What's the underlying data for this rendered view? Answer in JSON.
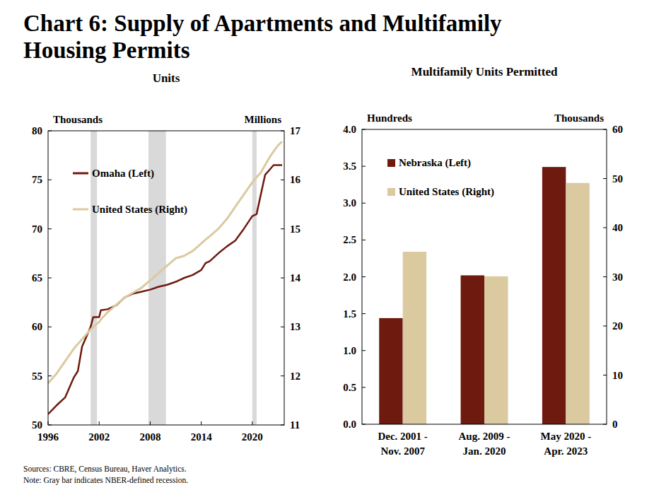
{
  "title": "Chart 6: Supply of Apartments and Multifamily Housing Permits",
  "sources": "Sources: CBRE,  Census Bureau, Haver Analytics.",
  "note": "Note: Gray bar indicates NBER-defined  recession.",
  "chart_data": [
    {
      "type": "line",
      "title": "Units",
      "ylabel": "Thousands",
      "y2label": "Millions",
      "x": [
        1996,
        1997,
        1998,
        1999,
        1999.5,
        2000,
        2000.5,
        2001,
        2001.3,
        2002,
        2002.2,
        2003,
        2004,
        2005,
        2006,
        2007,
        2008,
        2009,
        2010,
        2011,
        2012,
        2013,
        2014,
        2014.5,
        2015,
        2016,
        2017,
        2018,
        2019,
        2020,
        2020.5,
        2021,
        2021.5,
        2022,
        2022.5,
        2023,
        2023.5
      ],
      "xlim": [
        1996,
        2023.75
      ],
      "xticks": [
        1996,
        2002,
        2008,
        2014,
        2020
      ],
      "ylim": [
        50,
        80
      ],
      "yticks": [
        50,
        55,
        60,
        65,
        70,
        75,
        80
      ],
      "y2lim": [
        11,
        17
      ],
      "y2ticks": [
        11,
        12,
        13,
        14,
        15,
        16,
        17
      ],
      "grid": false,
      "legend": "upper left",
      "recessions": [
        [
          2001.0,
          2001.75
        ],
        [
          2007.8,
          2009.85
        ],
        [
          2020.0,
          2020.5
        ]
      ],
      "series": [
        {
          "name": "Omaha (Left)",
          "color": "#6e1a0f",
          "values": [
            51.1,
            52.0,
            52.8,
            54.8,
            55.5,
            58.0,
            59.0,
            60.0,
            61.0,
            61.0,
            61.7,
            61.8,
            62.2,
            63.0,
            63.4,
            63.6,
            63.8,
            64.1,
            64.3,
            64.6,
            65.0,
            65.3,
            65.8,
            66.5,
            66.7,
            67.5,
            68.2,
            68.8,
            70.0,
            71.3,
            71.5,
            73.5,
            75.5,
            76.0,
            76.5,
            76.5,
            76.5
          ]
        },
        {
          "name": "United States (Right)",
          "color": "#dbc9a0",
          "axis": "y2",
          "values": [
            11.85,
            12.05,
            12.3,
            12.55,
            12.65,
            12.75,
            12.85,
            12.95,
            13.0,
            13.1,
            13.15,
            13.3,
            13.45,
            13.6,
            13.7,
            13.8,
            13.95,
            14.1,
            14.25,
            14.4,
            14.45,
            14.55,
            14.7,
            14.78,
            14.85,
            15.0,
            15.2,
            15.45,
            15.7,
            15.95,
            16.05,
            16.15,
            16.3,
            16.45,
            16.58,
            16.7,
            16.78
          ]
        }
      ]
    },
    {
      "type": "bar",
      "title": "Multifamily Units Permitted",
      "ylabel": "Hundreds",
      "y2label": "Thousands",
      "categories": [
        "Dec. 2001 - Nov. 2007",
        "Aug. 2009 - Jan. 2020",
        "May 2020 - Apr. 2023"
      ],
      "ylim": [
        0,
        4
      ],
      "yticks": [
        {
          "value": 0,
          "label": "0.0"
        },
        0.5,
        {
          "value": 1,
          "label": "1.0"
        },
        1.5,
        {
          "value": 2,
          "label": "2.0"
        },
        2.5,
        {
          "value": 3,
          "label": "3.0"
        },
        3.5,
        {
          "value": 4,
          "label": "4.0"
        }
      ],
      "y2lim": [
        0,
        60
      ],
      "y2ticks": [
        0,
        10,
        20,
        30,
        40,
        50,
        60
      ],
      "grid": false,
      "legend": "upper left",
      "series": [
        {
          "name": "Nebraska (Left)",
          "color": "#6e1a0f",
          "values": [
            1.44,
            2.02,
            3.49
          ]
        },
        {
          "name": "United States (Right)",
          "color": "#dbc9a0",
          "axis": "y2",
          "values": [
            35.1,
            30.1,
            49.1
          ]
        }
      ]
    }
  ]
}
